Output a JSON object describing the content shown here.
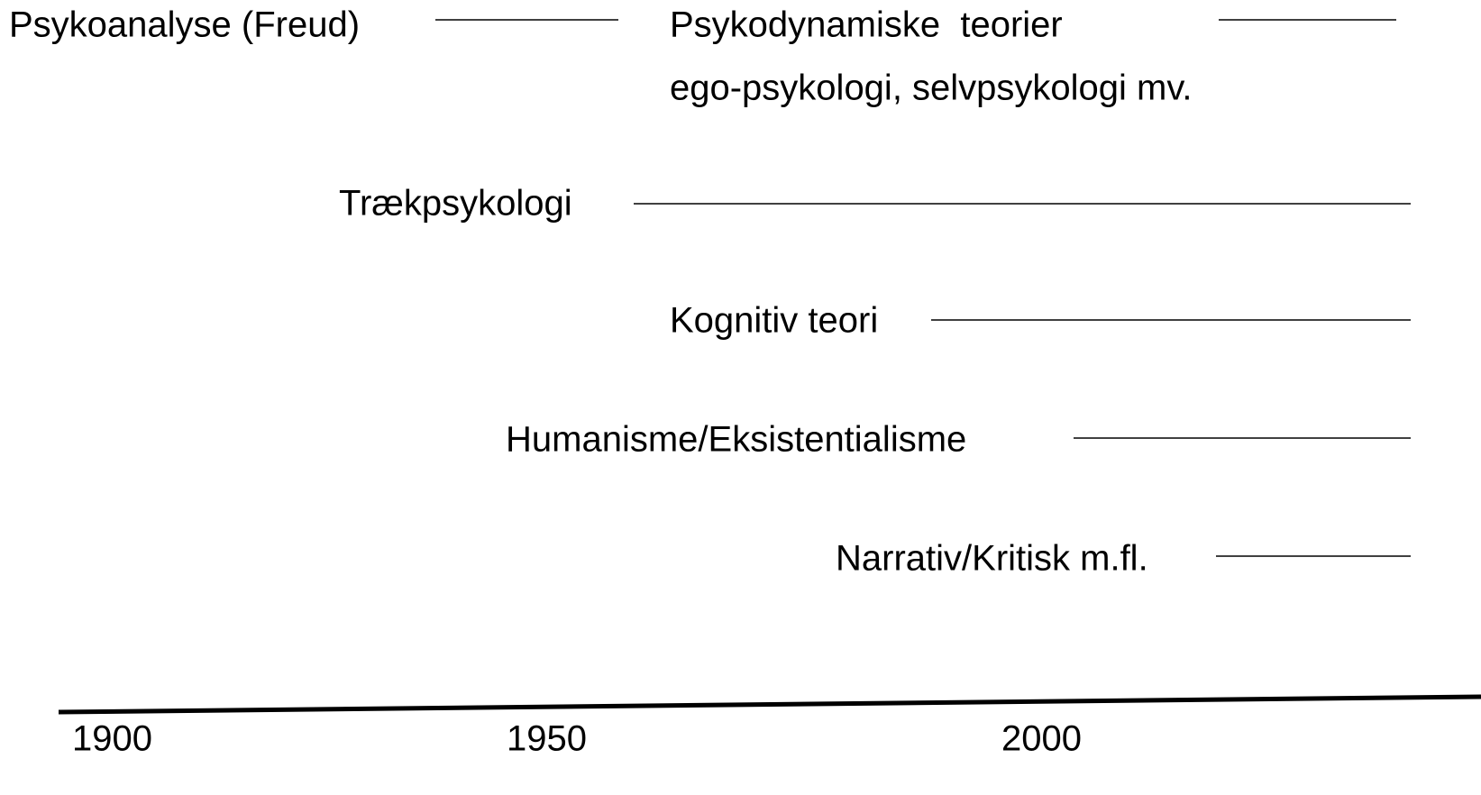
{
  "nodes": [
    {
      "label": "Psykoanalyse (Freud)"
    },
    {
      "label": "Psykodynamiske  teorier",
      "sublabel": "ego-psykologi, selvpsykologi mv."
    },
    {
      "label": "Trækpsykologi"
    },
    {
      "label": "Kognitiv teori"
    },
    {
      "label": "Humanisme/Eksistentialisme"
    },
    {
      "label": "Narrativ/Kritisk m.fl."
    }
  ],
  "axis": {
    "labels": [
      "1900",
      "1950",
      "2000"
    ]
  }
}
